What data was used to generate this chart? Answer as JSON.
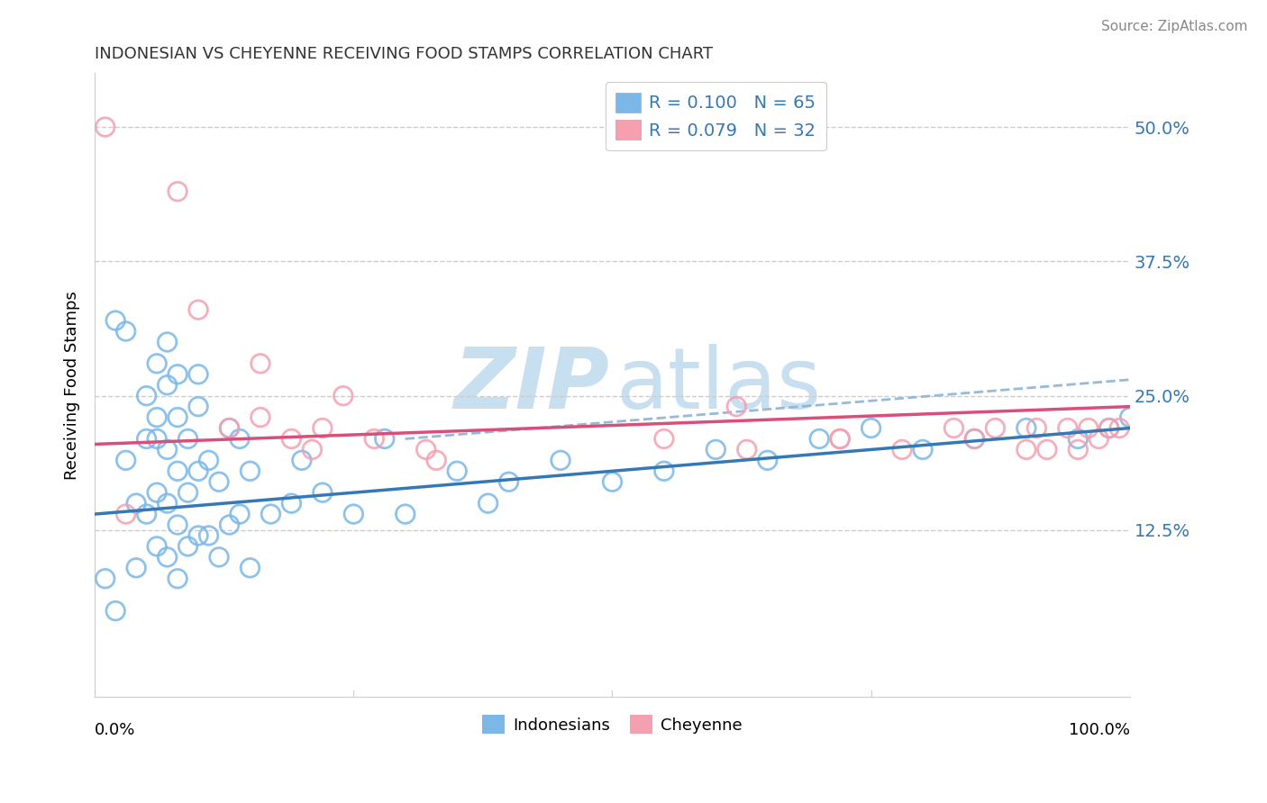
{
  "title": "INDONESIAN VS CHEYENNE RECEIVING FOOD STAMPS CORRELATION CHART",
  "source": "Source: ZipAtlas.com",
  "ylabel": "Receiving Food Stamps",
  "xlim": [
    0,
    100
  ],
  "ylim": [
    -3,
    55
  ],
  "ytick_positions": [
    0,
    12.5,
    25.0,
    37.5,
    50.0
  ],
  "ytick_labels_right": [
    "",
    "12.5%",
    "25.0%",
    "37.5%",
    "50.0%"
  ],
  "blue_color": "#7bb8e8",
  "pink_color": "#f4a0b0",
  "blue_line_color": "#3478b5",
  "pink_line_color": "#d94f7a",
  "dashed_line_color": "#8ab4d4",
  "grid_color": "#cccccc",
  "watermark_zip_color": "#c8dff0",
  "watermark_atlas_color": "#c8dff0",
  "legend_text_color": "#3478b5",
  "title_color": "#333333",
  "source_color": "#888888",
  "indonesian_x": [
    1,
    2,
    2,
    3,
    3,
    4,
    4,
    5,
    5,
    5,
    6,
    6,
    6,
    6,
    7,
    7,
    7,
    7,
    7,
    8,
    8,
    8,
    8,
    8,
    9,
    9,
    9,
    10,
    10,
    10,
    10,
    11,
    11,
    12,
    12,
    13,
    13,
    14,
    14,
    15,
    15,
    17,
    19,
    20,
    22,
    25,
    28,
    30,
    35,
    38,
    40,
    45,
    50,
    55,
    60,
    65,
    70,
    75,
    80,
    85,
    90,
    95,
    98,
    100,
    6
  ],
  "indonesian_y": [
    8,
    5,
    32,
    19,
    31,
    9,
    15,
    14,
    21,
    25,
    11,
    16,
    21,
    23,
    10,
    15,
    20,
    26,
    30,
    8,
    13,
    18,
    23,
    27,
    11,
    16,
    21,
    12,
    18,
    24,
    27,
    12,
    19,
    10,
    17,
    13,
    22,
    14,
    21,
    9,
    18,
    14,
    15,
    19,
    16,
    14,
    21,
    14,
    18,
    15,
    17,
    19,
    17,
    18,
    20,
    19,
    21,
    22,
    20,
    21,
    22,
    21,
    22,
    23,
    28
  ],
  "cheyenne_x": [
    1,
    3,
    8,
    10,
    13,
    16,
    16,
    19,
    21,
    22,
    24,
    27,
    32,
    33,
    55,
    62,
    72,
    78,
    83,
    85,
    87,
    90,
    91,
    92,
    94,
    95,
    96,
    97,
    98,
    99,
    63,
    72
  ],
  "cheyenne_y": [
    50,
    14,
    44,
    33,
    22,
    28,
    23,
    21,
    20,
    22,
    25,
    21,
    20,
    19,
    21,
    24,
    21,
    20,
    22,
    21,
    22,
    20,
    22,
    20,
    22,
    20,
    22,
    21,
    22,
    22,
    20,
    21
  ]
}
